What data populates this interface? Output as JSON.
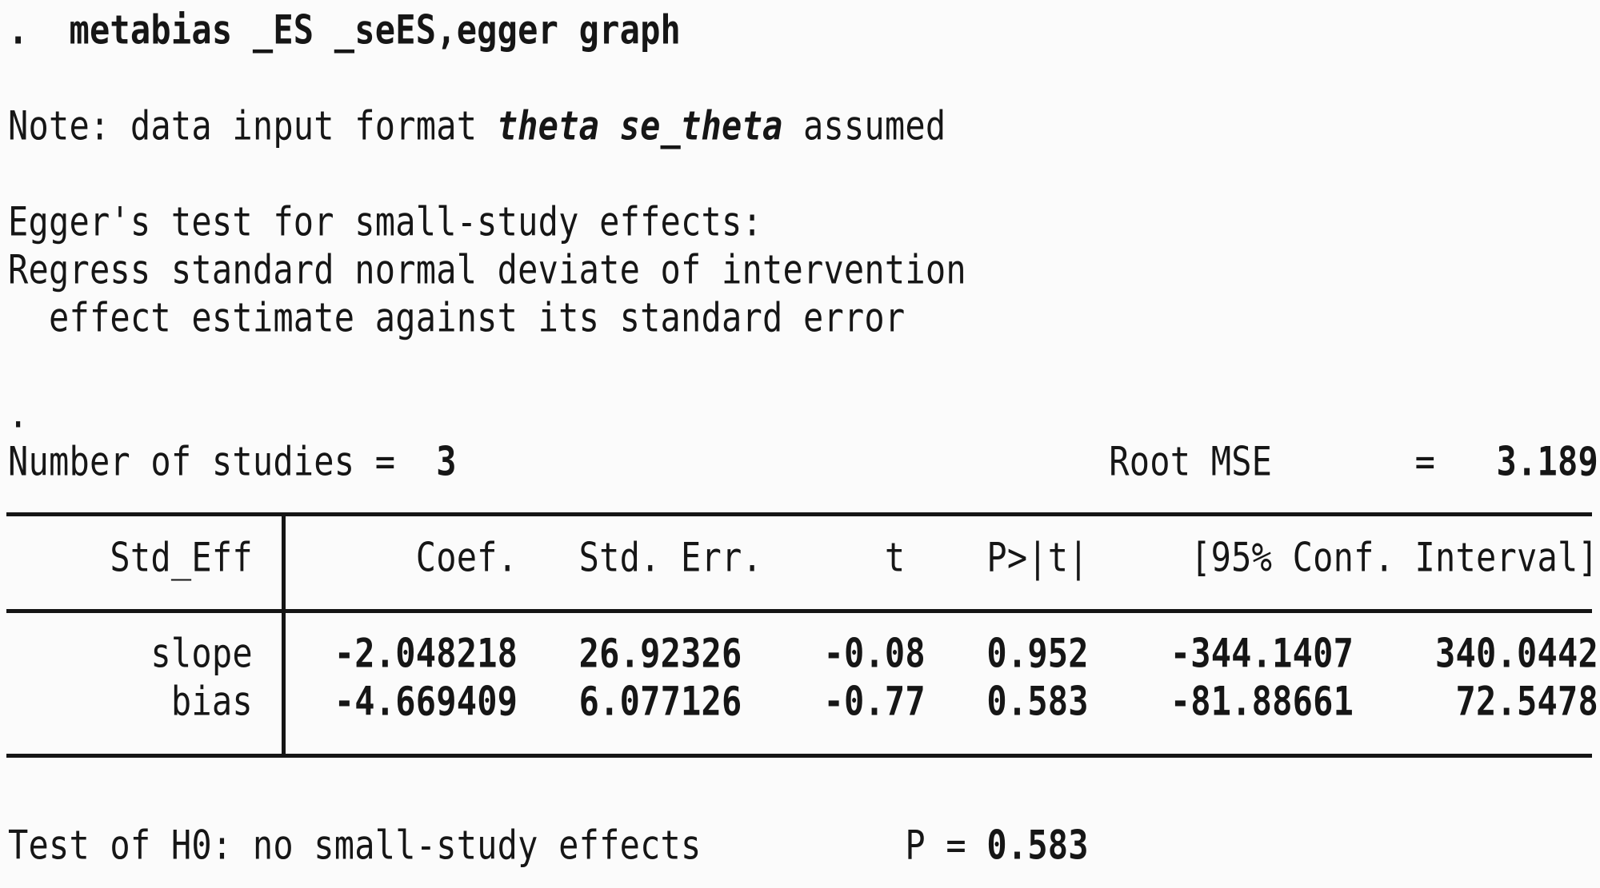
{
  "colors": {
    "background": "#fbfbfb",
    "text": "#161616",
    "rule": "#151515"
  },
  "console": {
    "lines": [
      {
        "name": "command",
        "segments": [
          {
            "style": "bold",
            "text": ".  metabias _ES _seES,egger graph"
          }
        ]
      },
      {
        "name": "blank",
        "segments": []
      },
      {
        "name": "note",
        "segments": [
          {
            "style": "regular",
            "text": "Note: data input format "
          },
          {
            "style": "bold-italic",
            "text": "theta se_theta"
          },
          {
            "style": "regular",
            "text": " assumed"
          }
        ]
      },
      {
        "name": "blank",
        "segments": []
      },
      {
        "name": "egger-title",
        "segments": [
          {
            "style": "regular",
            "text": "Egger's test for small-study effects:"
          }
        ]
      },
      {
        "name": "regress-1",
        "segments": [
          {
            "style": "regular",
            "text": "Regress standard normal deviate of intervention"
          }
        ]
      },
      {
        "name": "regress-2",
        "segments": [
          {
            "style": "regular",
            "text": "  effect estimate against its standard error"
          }
        ]
      },
      {
        "name": "blank",
        "segments": []
      },
      {
        "name": "dot",
        "segments": [
          {
            "style": "regular",
            "text": "."
          }
        ]
      },
      {
        "name": "stats",
        "segments": [
          {
            "style": "regular",
            "text": "Number of studies =  "
          },
          {
            "style": "bold",
            "text": "3"
          },
          {
            "style": "regular",
            "text": "                                Root MSE       =   "
          },
          {
            "style": "bold",
            "text": "3.189"
          }
        ]
      },
      {
        "name": "rule-top",
        "segments": []
      },
      {
        "name": "table-header",
        "segments": [
          {
            "style": "regular",
            "text": "     Std_Eff        Coef.   Std. Err.      t    P>|t|     [95% Conf. Interval]"
          }
        ]
      },
      {
        "name": "rule-mid",
        "segments": []
      },
      {
        "name": "row-slope",
        "segments": [
          {
            "style": "regular",
            "text": "       slope"
          },
          {
            "style": "bold",
            "text": "    -2.048218   26.92326    -0.08   0.952    -344.1407    340.0442"
          }
        ]
      },
      {
        "name": "row-bias",
        "segments": [
          {
            "style": "regular",
            "text": "        bias"
          },
          {
            "style": "bold",
            "text": "    -4.669409   6.077126    -0.77   0.583    -81.88661     72.5478"
          }
        ]
      },
      {
        "name": "rule-bottom",
        "segments": []
      },
      {
        "name": "blank",
        "segments": []
      },
      {
        "name": "h0-test",
        "segments": [
          {
            "style": "regular",
            "text": "Test of H0: no small-study effects          P = "
          },
          {
            "style": "bold",
            "text": "0.583"
          }
        ]
      }
    ]
  },
  "statistics": {
    "number_of_studies": "3",
    "root_mse": "3.189"
  },
  "results_table": {
    "row_header": "Std_Eff",
    "columns": [
      "Coef.",
      "Std. Err.",
      "t",
      "P>|t|",
      "[95% Conf. Interval]"
    ],
    "rows": [
      {
        "label": "slope",
        "coef": "-2.048218",
        "std_err": "26.92326",
        "t": "-0.08",
        "p": "0.952",
        "ci_low": "-344.1407",
        "ci_high": "340.0442"
      },
      {
        "label": "bias",
        "coef": "-4.669409",
        "std_err": "6.077126",
        "t": "-0.77",
        "p": "0.583",
        "ci_low": "-81.88661",
        "ci_high": "72.5478"
      }
    ]
  },
  "h0_test": {
    "label": "Test of H0: no small-study effects",
    "p_label": "P",
    "p_value": "0.583"
  }
}
